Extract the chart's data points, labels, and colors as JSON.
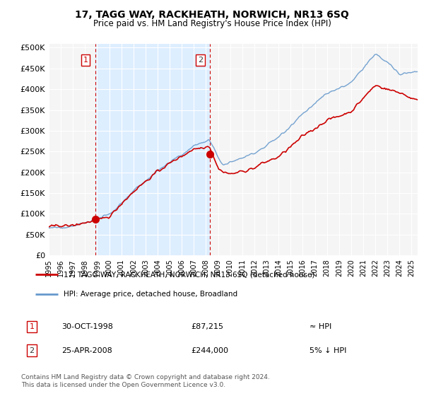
{
  "title": "17, TAGG WAY, RACKHEATH, NORWICH, NR13 6SQ",
  "subtitle": "Price paid vs. HM Land Registry's House Price Index (HPI)",
  "ylabel_ticks": [
    "£0",
    "£50K",
    "£100K",
    "£150K",
    "£200K",
    "£250K",
    "£300K",
    "£350K",
    "£400K",
    "£450K",
    "£500K"
  ],
  "ytick_values": [
    0,
    50000,
    100000,
    150000,
    200000,
    250000,
    300000,
    350000,
    400000,
    450000,
    500000
  ],
  "ylim": [
    0,
    510000
  ],
  "xlim_start": 1995.0,
  "xlim_end": 2025.5,
  "sale1_x": 1998.83,
  "sale1_y": 87215,
  "sale1_label": "1",
  "sale1_date": "30-OCT-1998",
  "sale1_price": "£87,215",
  "sale1_hpi": "≈ HPI",
  "sale2_x": 2008.32,
  "sale2_y": 244000,
  "sale2_label": "2",
  "sale2_date": "25-APR-2008",
  "sale2_price": "£244,000",
  "sale2_hpi": "5% ↓ HPI",
  "property_label": "17, TAGG WAY, RACKHEATH, NORWICH, NR13 6SQ (detached house)",
  "hpi_label": "HPI: Average price, detached house, Broadland",
  "line_color_property": "#cc0000",
  "line_color_hpi": "#6699cc",
  "shade_color": "#ddeeff",
  "vline_color": "#cc0000",
  "background_color": "#ffffff",
  "plot_bg_color": "#f5f5f5",
  "grid_color": "#ffffff",
  "footnote": "Contains HM Land Registry data © Crown copyright and database right 2024.\nThis data is licensed under the Open Government Licence v3.0.",
  "xtick_years": [
    1995,
    1996,
    1997,
    1998,
    1999,
    2000,
    2001,
    2002,
    2003,
    2004,
    2005,
    2006,
    2007,
    2008,
    2009,
    2010,
    2011,
    2012,
    2013,
    2014,
    2015,
    2016,
    2017,
    2018,
    2019,
    2020,
    2021,
    2022,
    2023,
    2024,
    2025
  ]
}
